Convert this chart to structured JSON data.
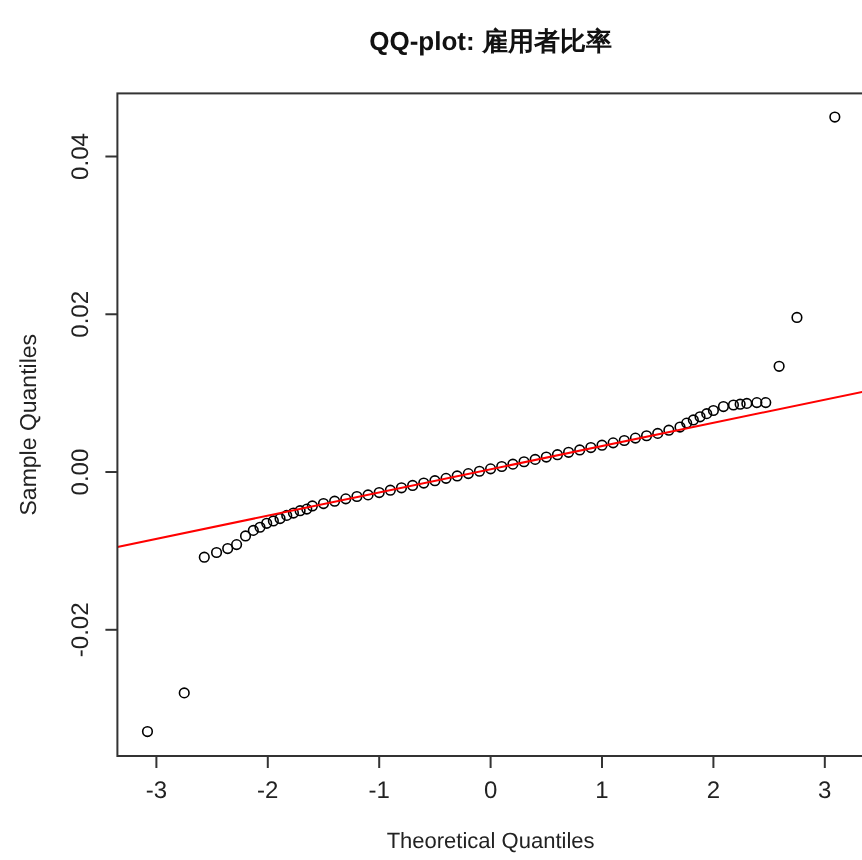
{
  "chart_data": {
    "type": "scatter",
    "title": "QQ-plot: 雇用者比率",
    "xlabel": "Theoretical Quantiles",
    "ylabel": "Sample Quantiles",
    "xlim": [
      -3.35,
      3.35
    ],
    "ylim": [
      -0.036,
      0.048
    ],
    "xticks": [
      -3,
      -2,
      -1,
      0,
      1,
      2,
      3
    ],
    "yticks": [
      {
        "value": -0.02,
        "label": "-0.02"
      },
      {
        "value": 0,
        "label": "0.00"
      },
      0.02,
      0.04
    ],
    "series": [
      {
        "marker": "circle",
        "color": "#000000",
        "x": [
          -3.08,
          -2.75,
          -2.57,
          -2.46,
          -2.36,
          -2.28,
          -2.2,
          -2.13,
          -2.07,
          -2.01,
          -1.95,
          -1.89,
          -1.83,
          -1.77,
          -1.71,
          -1.65,
          -1.6,
          -1.5,
          -1.4,
          -1.3,
          -1.2,
          -1.1,
          -1.0,
          -0.9,
          -0.8,
          -0.7,
          -0.6,
          -0.5,
          -0.4,
          -0.3,
          -0.2,
          -0.1,
          0,
          0.1,
          0.2,
          0.3,
          0.4,
          0.5,
          0.6,
          0.7,
          0.8,
          0.9,
          1.0,
          1.1,
          1.2,
          1.3,
          1.4,
          1.5,
          1.6,
          1.7,
          1.76,
          1.82,
          1.88,
          1.94,
          2.0,
          2.09,
          2.18,
          2.24,
          2.3,
          2.39,
          2.47,
          2.59,
          2.75,
          3.09
        ],
        "values": [
          -0.0329,
          -0.028,
          -0.0108,
          -0.0102,
          -0.0097,
          -0.0092,
          -0.0081,
          -0.0074,
          -0.007,
          -0.0065,
          -0.0062,
          -0.0059,
          -0.0055,
          -0.0052,
          -0.0049,
          -0.0047,
          -0.0043,
          -0.004,
          -0.0037,
          -0.0034,
          -0.0031,
          -0.0029,
          -0.0026,
          -0.0023,
          -0.002,
          -0.0017,
          -0.0014,
          -0.0011,
          -0.0008,
          -0.0005,
          -0.0002,
          0.0001,
          0.0004,
          0.0007,
          0.001,
          0.0013,
          0.0016,
          0.0019,
          0.0022,
          0.0025,
          0.0028,
          0.0031,
          0.0034,
          0.0037,
          0.004,
          0.0043,
          0.0046,
          0.0049,
          0.0053,
          0.0057,
          0.0062,
          0.0066,
          0.007,
          0.0074,
          0.0078,
          0.0083,
          0.0085,
          0.0086,
          0.0087,
          0.0088,
          0.0088,
          0.0134,
          0.0196,
          0.045
        ]
      },
      {
        "type": "line",
        "color": "#ff0000",
        "x": [
          -3.35,
          3.35
        ],
        "values": [
          -0.0095,
          0.0102
        ]
      }
    ]
  }
}
